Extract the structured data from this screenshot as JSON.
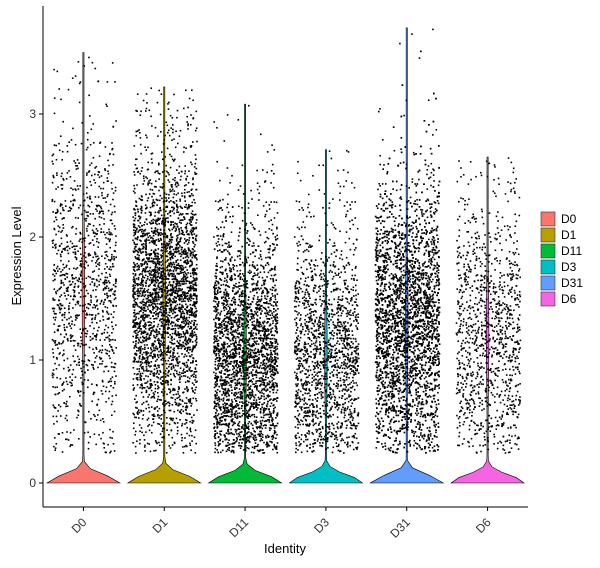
{
  "chart_data": {
    "type": "violin",
    "title": "",
    "xlabel": "Identity",
    "ylabel": "Expression Level",
    "ylim": [
      -0.2,
      3.85
    ],
    "yticks": [
      0,
      1,
      2,
      3
    ],
    "grid": false,
    "legend": {
      "placement": "right",
      "title": ""
    },
    "categories": [
      "D0",
      "D1",
      "D11",
      "D3",
      "D31",
      "D6"
    ],
    "series": [
      {
        "name": "D0",
        "color": "#F8766D",
        "max": 3.5,
        "zero_fraction": 0.55,
        "points": 1100,
        "mean_nonzero": 1.55,
        "sd_nonzero": 0.65
      },
      {
        "name": "D1",
        "color": "#B79F00",
        "max": 3.22,
        "zero_fraction": 0.45,
        "points": 3000,
        "mean_nonzero": 1.5,
        "sd_nonzero": 0.55
      },
      {
        "name": "D11",
        "color": "#00BA38",
        "max": 3.08,
        "zero_fraction": 0.4,
        "points": 2800,
        "mean_nonzero": 1.05,
        "sd_nonzero": 0.5
      },
      {
        "name": "D3",
        "color": "#00BFC4",
        "max": 2.71,
        "zero_fraction": 0.5,
        "points": 1600,
        "mean_nonzero": 1.05,
        "sd_nonzero": 0.5
      },
      {
        "name": "D31",
        "color": "#619CFF",
        "max": 3.7,
        "zero_fraction": 0.35,
        "points": 4000,
        "mean_nonzero": 1.3,
        "sd_nonzero": 0.55
      },
      {
        "name": "D6",
        "color": "#F564E3",
        "max": 2.65,
        "zero_fraction": 0.55,
        "points": 1100,
        "mean_nonzero": 1.2,
        "sd_nonzero": 0.55
      }
    ]
  }
}
